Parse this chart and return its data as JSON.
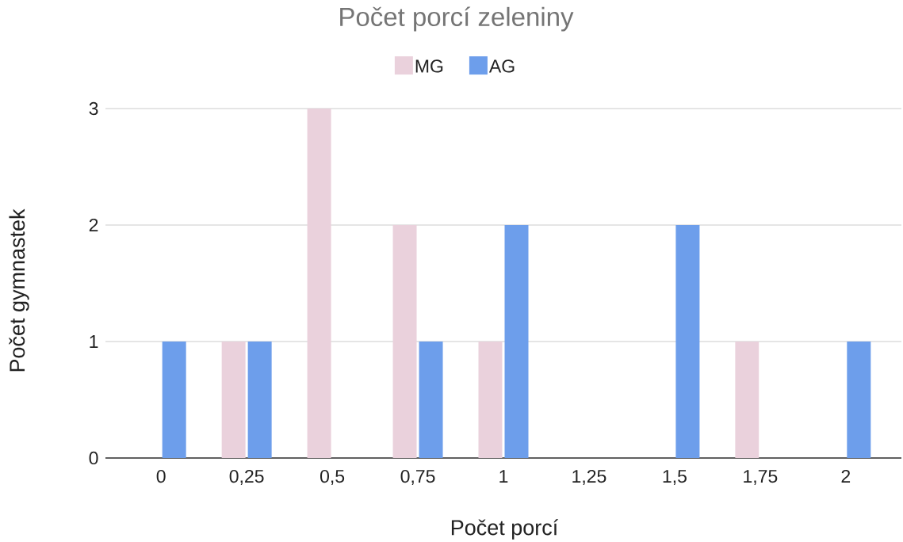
{
  "chart_data": {
    "type": "bar",
    "title": "Počet porcí zeleniny",
    "xlabel": "Počet porcí",
    "ylabel": "Počet gymnastek",
    "categories": [
      "0",
      "0,25",
      "0,5",
      "0,75",
      "1",
      "1,25",
      "1,5",
      "1,75",
      "2"
    ],
    "series": [
      {
        "name": "MG",
        "color": "#ead1dc",
        "values": [
          0,
          1,
          3,
          2,
          1,
          0,
          0,
          1,
          0
        ]
      },
      {
        "name": "AG",
        "color": "#6d9eeb",
        "values": [
          1,
          1,
          0,
          1,
          2,
          0,
          2,
          0,
          1
        ]
      }
    ],
    "ylim": [
      0,
      3
    ],
    "yticks": [
      0,
      1,
      2,
      3
    ],
    "grid": "y",
    "legend": "top"
  }
}
